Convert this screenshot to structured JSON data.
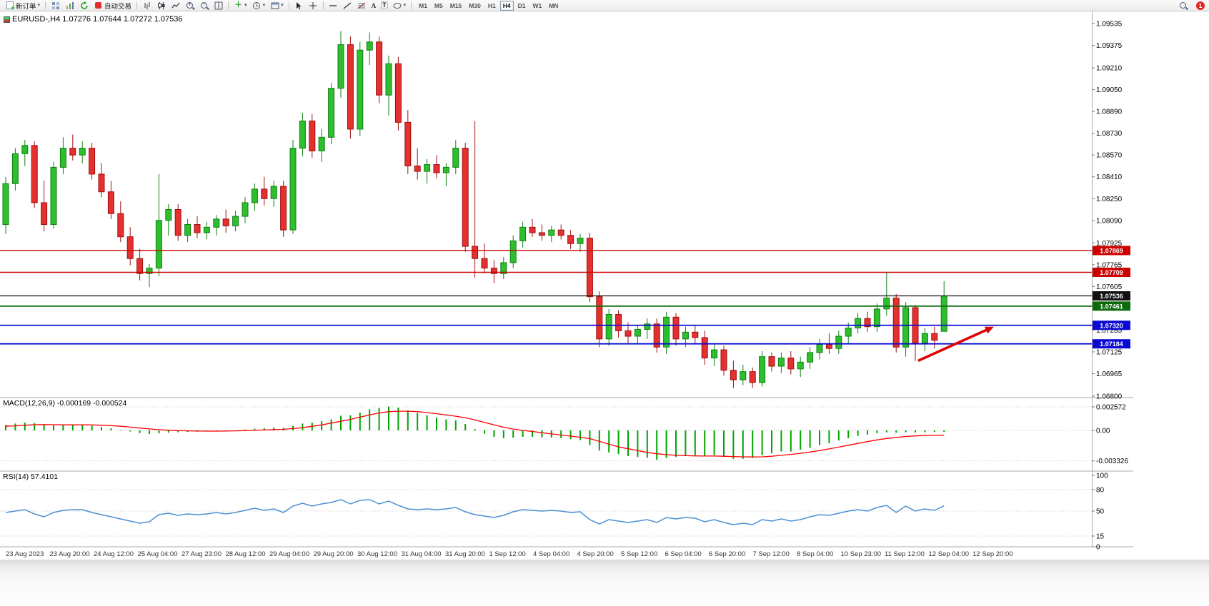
{
  "toolbar": {
    "new_order_label": "新订单",
    "auto_trading_label": "自动交易",
    "timeframes": [
      "M1",
      "M5",
      "M15",
      "M30",
      "H1",
      "H4",
      "D1",
      "W1",
      "MN"
    ],
    "active_timeframe": "H4",
    "notification_count": "1"
  },
  "chart_header": {
    "text": "EURUSD-,H4 1.07276 1.07644 1.07272 1.07536",
    "symbol": "EURUSD-",
    "timeframe": "H4"
  },
  "indicators": {
    "macd_label": "MACD(12,26,9) -0.000169 -0.000524",
    "rsi_label": "RSI(14) 57.4101"
  },
  "chart_data": [
    {
      "type": "candlestick",
      "symbol": "EURUSD-",
      "timeframe": "H4",
      "current_ohlc": {
        "open": 1.07276,
        "high": 1.07644,
        "low": 1.07272,
        "close": 1.07536
      },
      "ylim": [
        1.068,
        1.09535
      ],
      "up_color": "#2ebe2e",
      "up_stroke": "#118011",
      "down_color": "#e53030",
      "down_stroke": "#a01010",
      "y_axis_labels": [
        "1.09535",
        "1.09375",
        "1.09210",
        "1.09050",
        "1.08890",
        "1.08730",
        "1.08570",
        "1.08410",
        "1.08250",
        "1.08090",
        "1.07925",
        "1.07765",
        "1.07605",
        "1.07285",
        "1.07125",
        "1.06965",
        "1.06800"
      ],
      "x_labels": [
        "23 Aug 2023",
        "23 Aug 20:00",
        "24 Aug 12:00",
        "25 Aug 04:00",
        "27 Aug 23:00",
        "28 Aug 12:00",
        "29 Aug 04:00",
        "29 Aug 20:00",
        "30 Aug 12:00",
        "31 Aug 04:00",
        "31 Aug 20:00",
        "1 Sep 12:00",
        "4 Sep 04:00",
        "4 Sep 20:00",
        "5 Sep 12:00",
        "6 Sep 04:00",
        "6 Sep 20:00",
        "7 Sep 12:00",
        "8 Sep 04:00",
        "10 Sep 23:00",
        "11 Sep 12:00",
        "12 Sep 04:00",
        "12 Sep 20:00"
      ],
      "hlines": [
        {
          "price": 1.07869,
          "label": "1.07869",
          "color": "#cc0000",
          "width": 1.4
        },
        {
          "price": 1.07709,
          "label": "1.07709",
          "color": "#cc0000",
          "width": 1.4
        },
        {
          "price": 1.07536,
          "label": "1.07536",
          "color": "#111111",
          "width": 1.2
        },
        {
          "price": 1.07461,
          "label": "1.07461",
          "color": "#0b6b0b",
          "width": 1.8
        },
        {
          "price": 1.0732,
          "label": "1.07320",
          "color": "#0a0ad2",
          "width": 1.8
        },
        {
          "price": 1.07184,
          "label": "1.07184",
          "color": "#0a0ad2",
          "width": 1.8
        }
      ],
      "annotations": [
        {
          "type": "arrow",
          "color": "#e00000",
          "from_index": 95.3,
          "from_price": 1.0706,
          "to_index": 103.2,
          "to_price": 1.0731
        }
      ],
      "candles": [
        [
          1.0806,
          1.0841,
          1.0799,
          1.0836
        ],
        [
          1.0836,
          1.0862,
          1.0831,
          1.0858
        ],
        [
          1.0858,
          1.0868,
          1.0849,
          1.0864
        ],
        [
          1.0864,
          1.0867,
          1.0818,
          1.0822
        ],
        [
          1.0822,
          1.0838,
          1.0801,
          1.0806
        ],
        [
          1.0806,
          1.0852,
          1.0803,
          1.0848
        ],
        [
          1.0848,
          1.087,
          1.0843,
          1.0862
        ],
        [
          1.0862,
          1.0872,
          1.0853,
          1.0857
        ],
        [
          1.0857,
          1.0867,
          1.0851,
          1.0862
        ],
        [
          1.0862,
          1.0866,
          1.0839,
          1.0843
        ],
        [
          1.0843,
          1.0851,
          1.0826,
          1.083
        ],
        [
          1.083,
          1.0838,
          1.081,
          1.0814
        ],
        [
          1.0814,
          1.0823,
          1.0793,
          1.0797
        ],
        [
          1.0797,
          1.0804,
          1.0776,
          1.0781
        ],
        [
          1.0781,
          1.0788,
          1.0765,
          1.077
        ],
        [
          1.077,
          1.0777,
          1.076,
          1.0774
        ],
        [
          1.0774,
          1.0843,
          1.0768,
          1.0809
        ],
        [
          1.0809,
          1.0821,
          1.0798,
          1.0817
        ],
        [
          1.0817,
          1.0821,
          1.0794,
          1.0798
        ],
        [
          1.0798,
          1.081,
          1.0793,
          1.0806
        ],
        [
          1.0806,
          1.0812,
          1.0796,
          1.08
        ],
        [
          1.08,
          1.0808,
          1.0795,
          1.0804
        ],
        [
          1.0804,
          1.0813,
          1.0798,
          1.081
        ],
        [
          1.081,
          1.0817,
          1.08,
          1.0805
        ],
        [
          1.0805,
          1.0816,
          1.0801,
          1.0812
        ],
        [
          1.0812,
          1.0826,
          1.0807,
          1.0822
        ],
        [
          1.0822,
          1.0836,
          1.0816,
          1.0832
        ],
        [
          1.0832,
          1.0841,
          1.082,
          1.0825
        ],
        [
          1.0825,
          1.0838,
          1.0819,
          1.0834
        ],
        [
          1.0834,
          1.0838,
          1.0797,
          1.0802
        ],
        [
          1.0802,
          1.0868,
          1.0799,
          1.0862
        ],
        [
          1.0862,
          1.0888,
          1.0856,
          1.0882
        ],
        [
          1.0882,
          1.0887,
          1.0855,
          1.086
        ],
        [
          1.086,
          1.0876,
          1.0852,
          1.087
        ],
        [
          1.087,
          1.091,
          1.0865,
          1.0906
        ],
        [
          1.0906,
          1.0948,
          1.0899,
          1.0938
        ],
        [
          1.0938,
          1.0944,
          1.0869,
          1.0876
        ],
        [
          1.0876,
          1.094,
          1.0871,
          1.0934
        ],
        [
          1.0934,
          1.0947,
          1.0923,
          1.094
        ],
        [
          1.094,
          1.0944,
          1.0895,
          1.0901
        ],
        [
          1.0901,
          1.093,
          1.0886,
          1.0924
        ],
        [
          1.0924,
          1.0929,
          1.0875,
          1.0881
        ],
        [
          1.0881,
          1.089,
          1.0843,
          1.0849
        ],
        [
          1.0849,
          1.0862,
          1.0839,
          1.0845
        ],
        [
          1.0845,
          1.0854,
          1.0836,
          1.085
        ],
        [
          1.085,
          1.0857,
          1.084,
          1.0844
        ],
        [
          1.0844,
          1.0851,
          1.0834,
          1.0848
        ],
        [
          1.0848,
          1.0868,
          1.0843,
          1.0862
        ],
        [
          1.0862,
          1.0866,
          1.0786,
          1.079
        ],
        [
          1.079,
          1.0882,
          1.0767,
          1.0781
        ],
        [
          1.0781,
          1.0792,
          1.077,
          1.0774
        ],
        [
          1.0774,
          1.078,
          1.0763,
          1.077
        ],
        [
          1.077,
          1.0782,
          1.0766,
          1.0778
        ],
        [
          1.0778,
          1.0798,
          1.0774,
          1.0794
        ],
        [
          1.0794,
          1.0808,
          1.0789,
          1.0804
        ],
        [
          1.0804,
          1.081,
          1.0797,
          1.08
        ],
        [
          1.08,
          1.0806,
          1.0794,
          1.0798
        ],
        [
          1.0798,
          1.0805,
          1.0793,
          1.0802
        ],
        [
          1.0802,
          1.0806,
          1.0795,
          1.0798
        ],
        [
          1.0798,
          1.0802,
          1.0788,
          1.0792
        ],
        [
          1.0792,
          1.0799,
          1.0786,
          1.0796
        ],
        [
          1.0796,
          1.08,
          1.0749,
          1.0753
        ],
        [
          1.0753,
          1.0757,
          1.0716,
          1.0722
        ],
        [
          1.0722,
          1.0744,
          1.0717,
          1.074
        ],
        [
          1.074,
          1.0743,
          1.0723,
          1.0728
        ],
        [
          1.0728,
          1.0734,
          1.0719,
          1.0724
        ],
        [
          1.0724,
          1.0732,
          1.0718,
          1.0729
        ],
        [
          1.0729,
          1.0737,
          1.0722,
          1.0733
        ],
        [
          1.0733,
          1.0737,
          1.0712,
          1.0716
        ],
        [
          1.0716,
          1.0742,
          1.0711,
          1.0738
        ],
        [
          1.0738,
          1.0741,
          1.0717,
          1.0722
        ],
        [
          1.0722,
          1.0731,
          1.0716,
          1.0727
        ],
        [
          1.0727,
          1.0732,
          1.0719,
          1.0723
        ],
        [
          1.0723,
          1.0728,
          1.0703,
          1.0708
        ],
        [
          1.0708,
          1.0718,
          1.0702,
          1.0714
        ],
        [
          1.0714,
          1.0717,
          1.0695,
          1.0699
        ],
        [
          1.0699,
          1.0706,
          1.0686,
          1.0692
        ],
        [
          1.0692,
          1.0703,
          1.0688,
          1.0698
        ],
        [
          1.0698,
          1.0701,
          1.0686,
          1.069
        ],
        [
          1.069,
          1.0713,
          1.0687,
          1.0709
        ],
        [
          1.0709,
          1.0712,
          1.0698,
          1.0702
        ],
        [
          1.0702,
          1.0712,
          1.0697,
          1.0708
        ],
        [
          1.0708,
          1.0713,
          1.0696,
          1.07
        ],
        [
          1.07,
          1.0709,
          1.0694,
          1.0705
        ],
        [
          1.0705,
          1.0716,
          1.07,
          1.0712
        ],
        [
          1.0712,
          1.0722,
          1.0707,
          1.0718
        ],
        [
          1.0718,
          1.0726,
          1.0711,
          1.0715
        ],
        [
          1.0715,
          1.0728,
          1.0711,
          1.0724
        ],
        [
          1.0724,
          1.0734,
          1.0719,
          1.073
        ],
        [
          1.073,
          1.0741,
          1.0726,
          1.0737
        ],
        [
          1.0737,
          1.0742,
          1.0727,
          1.0731
        ],
        [
          1.0731,
          1.0748,
          1.0727,
          1.0744
        ],
        [
          1.0744,
          1.0771,
          1.0739,
          1.0752
        ],
        [
          1.0752,
          1.0755,
          1.0712,
          1.0716
        ],
        [
          1.0716,
          1.0749,
          1.0709,
          1.0745
        ],
        [
          1.0745,
          1.0747,
          1.0706,
          1.0719
        ],
        [
          1.0719,
          1.073,
          1.0713,
          1.0726
        ],
        [
          1.0726,
          1.0731,
          1.0715,
          1.0721
        ],
        [
          1.07276,
          1.07644,
          1.07272,
          1.07536
        ]
      ]
    },
    {
      "type": "bar",
      "name": "MACD(12,26,9)",
      "current_values": [
        -0.000169,
        -0.000524
      ],
      "color": "#00a400",
      "signal_color": "#ff0000",
      "ylim": [
        -0.003326,
        0.002572
      ],
      "y_labels": [
        "0.002572",
        "0.00",
        "-0.003326"
      ],
      "values": [
        0.0006,
        0.00075,
        0.00085,
        0.0008,
        0.0006,
        0.00055,
        0.0006,
        0.00065,
        0.0006,
        0.0005,
        0.00038,
        0.00022,
        5e-05,
        -0.00012,
        -0.0003,
        -0.00038,
        -0.00032,
        -0.00025,
        -0.0002,
        -0.00016,
        -0.00014,
        -0.00012,
        -8e-05,
        -5e-05,
        0,
        8e-05,
        0.00018,
        0.00025,
        0.00032,
        0.00028,
        0.0005,
        0.00075,
        0.00085,
        0.001,
        0.0012,
        0.0016,
        0.00165,
        0.00195,
        0.0023,
        0.00245,
        0.0026,
        0.0025,
        0.0022,
        0.0019,
        0.00165,
        0.0014,
        0.0012,
        0.0011,
        0.0007,
        0.00015,
        -0.00035,
        -0.0007,
        -0.00085,
        -0.0008,
        -0.0007,
        -0.0007,
        -0.00075,
        -0.00078,
        -0.00085,
        -0.00095,
        -0.00105,
        -0.0016,
        -0.0022,
        -0.0024,
        -0.0026,
        -0.0028,
        -0.0029,
        -0.003,
        -0.0032,
        -0.003,
        -0.0029,
        -0.0028,
        -0.0027,
        -0.0028,
        -0.0027,
        -0.0029,
        -0.0031,
        -0.0031,
        -0.003,
        -0.0027,
        -0.0025,
        -0.0023,
        -0.0023,
        -0.0021,
        -0.0019,
        -0.0016,
        -0.0014,
        -0.0011,
        -0.00085,
        -0.0006,
        -0.00045,
        -0.0003,
        -0.00022,
        -0.00025,
        -0.0002,
        -0.00022,
        -0.0002,
        -0.00018,
        -0.00017
      ],
      "signal": [
        0.00045,
        0.0005,
        0.00056,
        0.00062,
        0.00064,
        0.00062,
        0.00061,
        0.00061,
        0.00061,
        0.0006,
        0.00057,
        0.00052,
        0.00045,
        0.00036,
        0.00026,
        0.00016,
        8e-05,
        2e-05,
        -2e-05,
        -5e-05,
        -7e-05,
        -8e-05,
        -8e-05,
        -7e-05,
        -5e-05,
        -2e-05,
        1e-05,
        5e-05,
        9e-05,
        0.00012,
        0.0002,
        0.0003,
        0.00045,
        0.0006,
        0.0008,
        0.001,
        0.0012,
        0.00145,
        0.0017,
        0.0019,
        0.00205,
        0.0021,
        0.0021,
        0.00205,
        0.00195,
        0.00182,
        0.00168,
        0.00155,
        0.00138,
        0.00115,
        0.00088,
        0.0006,
        0.00035,
        0.00015,
        0,
        -0.00012,
        -0.00025,
        -0.00038,
        -0.0005,
        -0.00062,
        -0.00075,
        -0.0009,
        -0.0012,
        -0.0015,
        -0.0018,
        -0.002,
        -0.0022,
        -0.0024,
        -0.00255,
        -0.00265,
        -0.00272,
        -0.00276,
        -0.00278,
        -0.0028,
        -0.0028,
        -0.00282,
        -0.00285,
        -0.00288,
        -0.0029,
        -0.00288,
        -0.00282,
        -0.00272,
        -0.00262,
        -0.0025,
        -0.00236,
        -0.0022,
        -0.00202,
        -0.00182,
        -0.00162,
        -0.00142,
        -0.00122,
        -0.00104,
        -0.00088,
        -0.00076,
        -0.00066,
        -0.0006,
        -0.00056,
        -0.00054,
        -0.00052
      ]
    },
    {
      "type": "line",
      "name": "RSI(14)",
      "current_value": 57.4101,
      "color": "#4a8fd4",
      "ylim": [
        0,
        100
      ],
      "levels": [
        80,
        50,
        15
      ],
      "y_labels": [
        "100",
        "80",
        "50",
        "15",
        "0"
      ],
      "values": [
        48,
        50,
        52,
        46,
        42,
        48,
        51,
        52,
        52,
        48,
        45,
        42,
        39,
        36,
        33,
        35,
        45,
        47,
        44,
        46,
        45,
        46,
        48,
        46,
        48,
        51,
        54,
        51,
        53,
        48,
        57,
        61,
        57,
        60,
        62,
        66,
        60,
        65,
        66,
        60,
        64,
        58,
        53,
        52,
        53,
        52,
        53,
        55,
        49,
        45,
        43,
        41,
        44,
        49,
        52,
        51,
        50,
        51,
        50,
        48,
        49,
        38,
        32,
        38,
        36,
        34,
        36,
        38,
        34,
        41,
        39,
        41,
        40,
        35,
        38,
        34,
        31,
        33,
        31,
        38,
        36,
        39,
        36,
        38,
        42,
        45,
        44,
        47,
        50,
        52,
        50,
        55,
        58,
        48,
        57,
        50,
        53,
        51,
        57.41
      ]
    }
  ]
}
